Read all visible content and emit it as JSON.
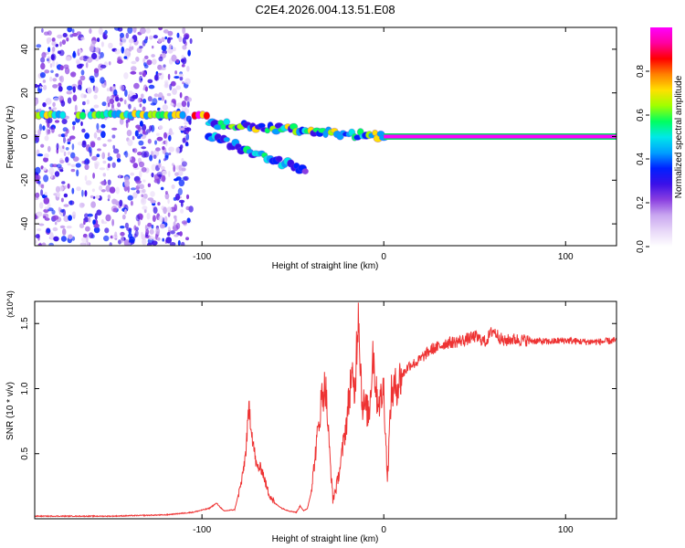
{
  "title": "C2E4.2026.004.13.51.E08",
  "chart_data": [
    {
      "type": "heatmap",
      "subtype": "spectrogram",
      "xlabel": "Height of straight line (km)",
      "ylabel": "Frequency (Hz)",
      "xlim": [
        -192,
        128
      ],
      "ylim": [
        -50,
        50
      ],
      "x_ticks": [
        -100,
        0,
        100
      ],
      "y_ticks": [
        -40,
        -20,
        0,
        20,
        40
      ],
      "colorbar": {
        "label": "Normalized spectral amplitude",
        "range": [
          0,
          1
        ],
        "ticks": [
          "0.0",
          "0.2",
          "0.4",
          "0.6",
          "0.8"
        ],
        "colormap": [
          "#ffffff",
          "#e8d8f8",
          "#c9a6f0",
          "#8a3fe0",
          "#3a10e8",
          "#0020ff",
          "#00a0ff",
          "#00e8e8",
          "#00ff60",
          "#a0ff00",
          "#ffe000",
          "#ff8000",
          "#ff0000",
          "#ff00a0",
          "#ff00ff"
        ]
      },
      "features": [
        {
          "name": "noise_band",
          "x": [
            -192,
            -106
          ],
          "y": [
            -50,
            50
          ],
          "level": 0.2
        },
        {
          "name": "track_10hz",
          "x": [
            -192,
            -96
          ],
          "y": 10,
          "level": 0.7
        },
        {
          "name": "track_upper_branch",
          "x": [
            -96,
            0
          ],
          "y_start": 6,
          "y_end": 0,
          "level": 0.6
        },
        {
          "name": "track_lower_branch",
          "x": [
            -96,
            -42
          ],
          "y_start": 0,
          "y_end": -16,
          "level": 0.45
        },
        {
          "name": "track_carrier",
          "x": [
            0,
            128
          ],
          "y": 0,
          "level": 1.0
        }
      ]
    },
    {
      "type": "line",
      "xlabel": "Height of straight line (km)",
      "ylabel": "SNR (10 * v/v)",
      "y_multiplier": "(x10^4)",
      "xlim": [
        -192,
        128
      ],
      "ylim": [
        0,
        1.67
      ],
      "x_ticks": [
        -100,
        0,
        100
      ],
      "y_ticks": [
        "0.5",
        "1.0",
        "1.5"
      ],
      "series": [
        {
          "color": "#ee3333",
          "x": [
            -192,
            -150,
            -120,
            -105,
            -96,
            -92,
            -88,
            -82,
            -78,
            -76,
            -74,
            -72,
            -70,
            -67,
            -64,
            -60,
            -56,
            -52,
            -48,
            -46,
            -44,
            -42,
            -40,
            -38,
            -36,
            -34,
            -32,
            -30,
            -28,
            -26,
            -24,
            -22,
            -20,
            -18,
            -16,
            -14,
            -12,
            -10,
            -8,
            -6,
            -4,
            -2,
            0,
            2,
            4,
            6,
            8,
            10,
            14,
            18,
            22,
            26,
            30,
            34,
            40,
            46,
            50,
            56,
            60,
            66,
            70,
            80,
            90,
            100,
            110,
            120,
            128
          ],
          "y": [
            0.02,
            0.02,
            0.03,
            0.05,
            0.08,
            0.12,
            0.06,
            0.07,
            0.3,
            0.5,
            0.86,
            0.6,
            0.4,
            0.38,
            0.22,
            0.12,
            0.08,
            0.06,
            0.05,
            0.1,
            0.06,
            0.08,
            0.2,
            0.45,
            0.7,
            0.95,
            1.02,
            0.55,
            0.15,
            0.25,
            0.4,
            0.6,
            0.8,
            1.1,
            0.95,
            1.65,
            0.9,
            0.85,
            0.8,
            1.3,
            0.95,
            0.9,
            1.0,
            0.3,
            0.95,
            1.0,
            1.05,
            1.1,
            1.18,
            1.2,
            1.25,
            1.3,
            1.32,
            1.35,
            1.36,
            1.38,
            1.4,
            1.36,
            1.45,
            1.36,
            1.38,
            1.37,
            1.36,
            1.37,
            1.36,
            1.36,
            1.37
          ]
        }
      ]
    }
  ]
}
